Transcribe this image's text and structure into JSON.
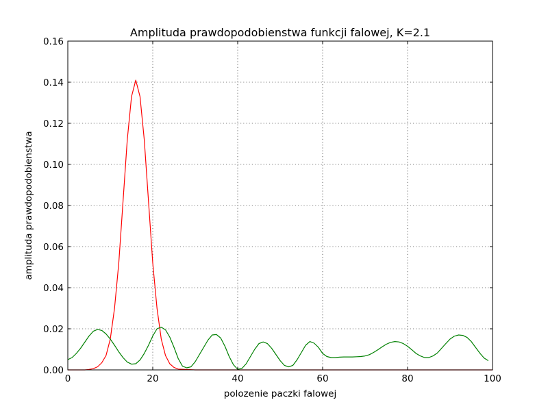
{
  "chart_data": {
    "type": "line",
    "title": "Amplituda prawdopodobienstwa funkcji falowej, K=2.1",
    "xlabel": "polozenie paczki falowej",
    "ylabel": "amplituda prawdopodobienstwa",
    "xlim": [
      0,
      100
    ],
    "ylim": [
      0,
      0.16
    ],
    "grid": true,
    "xticks": [
      0,
      20,
      40,
      60,
      80,
      100
    ],
    "xtick_labels": [
      "0",
      "20",
      "40",
      "60",
      "80",
      "100"
    ],
    "yticks": [
      0,
      0.02,
      0.04,
      0.06,
      0.08,
      0.1,
      0.12,
      0.14,
      0.16
    ],
    "ytick_labels": [
      "0.00",
      "0.02",
      "0.04",
      "0.06",
      "0.08",
      "0.10",
      "0.12",
      "0.14",
      "0.16"
    ],
    "series": [
      {
        "color": "#ff0000",
        "x": [
          0,
          4,
          5,
          6,
          7,
          8,
          9,
          10,
          11,
          12,
          13,
          14,
          15,
          16,
          17,
          18,
          19,
          20,
          21,
          22,
          23,
          24,
          25,
          26,
          30,
          40,
          60,
          80,
          100
        ],
        "y": [
          0,
          0,
          0.0002,
          0.0006,
          0.0015,
          0.0035,
          0.007,
          0.015,
          0.03,
          0.052,
          0.082,
          0.112,
          0.133,
          0.141,
          0.133,
          0.112,
          0.082,
          0.052,
          0.03,
          0.015,
          0.007,
          0.003,
          0.0012,
          0.0004,
          0,
          0,
          0,
          0,
          0
        ]
      },
      {
        "color": "#008000",
        "x": [
          0,
          1,
          2,
          3,
          4,
          5,
          6,
          7,
          8,
          9,
          10,
          11,
          12,
          13,
          14,
          15,
          16,
          17,
          18,
          19,
          20,
          21,
          22,
          23,
          24,
          25,
          26,
          27,
          28,
          29,
          30,
          31,
          32,
          33,
          34,
          35,
          36,
          37,
          38,
          39,
          40,
          41,
          42,
          43,
          44,
          45,
          46,
          47,
          48,
          49,
          50,
          51,
          52,
          53,
          54,
          55,
          56,
          57,
          58,
          59,
          60,
          61,
          62,
          63,
          64,
          65,
          66,
          67,
          68,
          69,
          70,
          71,
          72,
          73,
          74,
          75,
          76,
          77,
          78,
          79,
          80,
          81,
          82,
          83,
          84,
          85,
          86,
          87,
          88,
          89,
          90,
          91,
          92,
          93,
          94,
          95,
          96,
          97,
          98,
          99
        ],
        "y": [
          0.005,
          0.006,
          0.008,
          0.0105,
          0.0135,
          0.0165,
          0.0188,
          0.0197,
          0.0192,
          0.0175,
          0.015,
          0.012,
          0.0088,
          0.006,
          0.0038,
          0.0028,
          0.003,
          0.0048,
          0.008,
          0.012,
          0.0165,
          0.02,
          0.0208,
          0.0195,
          0.016,
          0.011,
          0.0055,
          0.0018,
          0.001,
          0.0015,
          0.004,
          0.0075,
          0.011,
          0.0145,
          0.017,
          0.0172,
          0.0155,
          0.0115,
          0.0065,
          0.0025,
          0.0003,
          0.0007,
          0.003,
          0.0065,
          0.01,
          0.0128,
          0.0136,
          0.0128,
          0.0105,
          0.0075,
          0.0045,
          0.0022,
          0.0015,
          0.0022,
          0.005,
          0.0085,
          0.012,
          0.0138,
          0.013,
          0.011,
          0.008,
          0.0065,
          0.006,
          0.006,
          0.0062,
          0.0063,
          0.0063,
          0.0063,
          0.0064,
          0.0065,
          0.0068,
          0.0074,
          0.0085,
          0.0098,
          0.0112,
          0.0125,
          0.0134,
          0.0138,
          0.0136,
          0.0128,
          0.0115,
          0.0098,
          0.008,
          0.0068,
          0.006,
          0.006,
          0.0068,
          0.0082,
          0.0105,
          0.0128,
          0.015,
          0.0164,
          0.017,
          0.0168,
          0.0158,
          0.0138,
          0.011,
          0.0082,
          0.0058,
          0.0045
        ]
      }
    ]
  }
}
